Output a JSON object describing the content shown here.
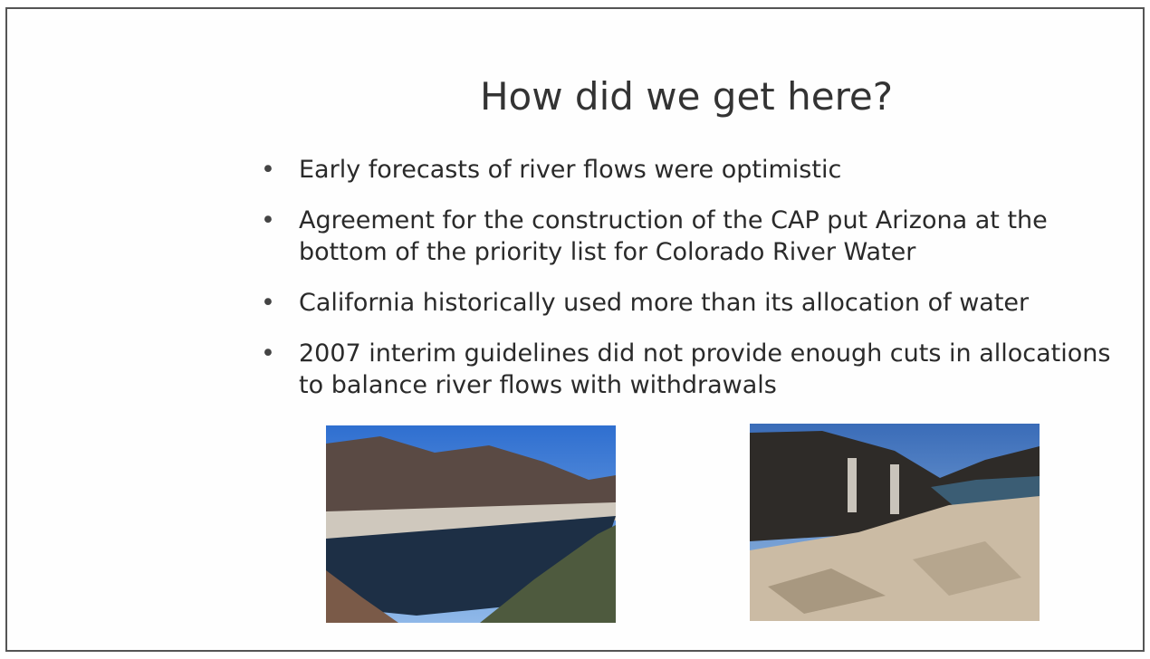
{
  "slide": {
    "title": "How did we get here?",
    "bullets": [
      "Early forecasts of river flows were optimistic",
      "Agreement for the construction of the CAP put Arizona at the bottom of the priority list for Colorado River Water",
      "California historically used more than its allocation of water",
      "2007 interim guidelines did not provide enough cuts in allocations to balance river flows with withdrawals"
    ]
  }
}
